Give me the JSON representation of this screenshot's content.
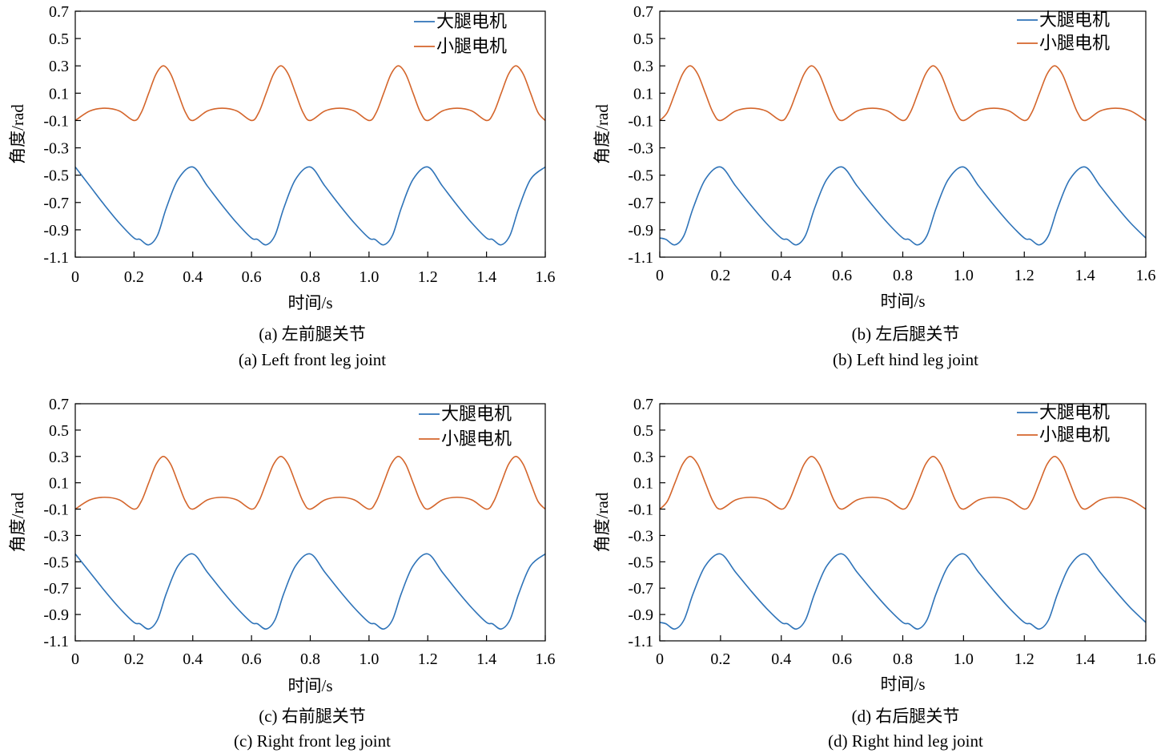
{
  "figure": {
    "colors": {
      "thigh": "#2e73b8",
      "shank": "#d4652b",
      "axis": "#000000"
    }
  },
  "chart_data": [
    {
      "type": "line",
      "caption_cn": "(a) 左前腿关节",
      "caption_en": "(a) Left front leg joint",
      "xlabel": "时间/s",
      "ylabel": "角度/rad",
      "xlim": [
        0,
        1.6
      ],
      "ylim": [
        -1.1,
        0.7
      ],
      "xticks": [
        0,
        0.2,
        0.4,
        0.6,
        0.8,
        1.0,
        1.2,
        1.4,
        1.6
      ],
      "xtick_labels": [
        "0",
        "0.2",
        "0.4",
        "0.6",
        "0.8",
        "1.0",
        "1.2",
        "1.4",
        "1.6"
      ],
      "yticks": [
        0.7,
        0.5,
        0.3,
        0.1,
        -0.1,
        -0.3,
        -0.5,
        -0.7,
        -0.9,
        -1.1
      ],
      "ytick_labels": [
        "0.7",
        "0.5",
        "0.3",
        "0.1",
        "-0.1",
        "-0.3",
        "-0.5",
        "-0.7",
        "-0.9",
        "-1.1"
      ],
      "legend_position": "top-right",
      "series": [
        {
          "name": "大腿电机",
          "color": "#2e73b8",
          "x": [
            0,
            0.05,
            0.1,
            0.15,
            0.2,
            0.22,
            0.25,
            0.28,
            0.31,
            0.35,
            0.4,
            0.45,
            0.5,
            0.55,
            0.6,
            0.62,
            0.65,
            0.68,
            0.71,
            0.75,
            0.8,
            0.85,
            0.9,
            0.95,
            1.0,
            1.02,
            1.05,
            1.08,
            1.11,
            1.15,
            1.2,
            1.25,
            1.3,
            1.35,
            1.4,
            1.42,
            1.45,
            1.48,
            1.51,
            1.55,
            1.6
          ],
          "y": [
            -0.44,
            -0.58,
            -0.72,
            -0.85,
            -0.96,
            -0.97,
            -1.01,
            -0.94,
            -0.74,
            -0.53,
            -0.44,
            -0.58,
            -0.72,
            -0.85,
            -0.96,
            -0.97,
            -1.01,
            -0.94,
            -0.74,
            -0.53,
            -0.44,
            -0.58,
            -0.72,
            -0.85,
            -0.96,
            -0.97,
            -1.01,
            -0.94,
            -0.74,
            -0.53,
            -0.44,
            -0.58,
            -0.72,
            -0.85,
            -0.96,
            -0.97,
            -1.01,
            -0.94,
            -0.74,
            -0.53,
            -0.44
          ]
        },
        {
          "name": "小腿电机",
          "color": "#d4652b",
          "x": [
            0,
            0.05,
            0.1,
            0.15,
            0.2,
            0.225,
            0.25,
            0.275,
            0.3,
            0.325,
            0.35,
            0.375,
            0.4,
            0.45,
            0.5,
            0.55,
            0.6,
            0.625,
            0.65,
            0.675,
            0.7,
            0.725,
            0.75,
            0.775,
            0.8,
            0.85,
            0.9,
            0.95,
            1.0,
            1.025,
            1.05,
            1.075,
            1.1,
            1.125,
            1.15,
            1.175,
            1.2,
            1.25,
            1.3,
            1.35,
            1.4,
            1.425,
            1.45,
            1.475,
            1.5,
            1.525,
            1.55,
            1.575,
            1.6
          ],
          "y": [
            -0.1,
            -0.03,
            -0.01,
            -0.03,
            -0.1,
            -0.04,
            0.1,
            0.24,
            0.3,
            0.24,
            0.1,
            -0.04,
            -0.1,
            -0.03,
            -0.01,
            -0.03,
            -0.1,
            -0.04,
            0.1,
            0.24,
            0.3,
            0.24,
            0.1,
            -0.04,
            -0.1,
            -0.03,
            -0.01,
            -0.03,
            -0.1,
            -0.04,
            0.1,
            0.24,
            0.3,
            0.24,
            0.1,
            -0.04,
            -0.1,
            -0.03,
            -0.01,
            -0.03,
            -0.1,
            -0.04,
            0.1,
            0.24,
            0.3,
            0.24,
            0.1,
            -0.04,
            -0.1
          ]
        }
      ]
    },
    {
      "type": "line",
      "caption_cn": "(b) 左后腿关节",
      "caption_en": "(b) Left hind leg joint",
      "xlabel": "时间/s",
      "ylabel": "角度/rad",
      "xlim": [
        0,
        1.6
      ],
      "ylim": [
        -1.1,
        0.7
      ],
      "xticks": [
        0,
        0.2,
        0.4,
        0.6,
        0.8,
        1.0,
        1.2,
        1.4,
        1.6
      ],
      "xtick_labels": [
        "0",
        "0.2",
        "0.4",
        "0.6",
        "0.8",
        "1.0",
        "1.2",
        "1.4",
        "1.6"
      ],
      "yticks": [
        0.7,
        0.5,
        0.3,
        0.1,
        -0.1,
        -0.3,
        -0.5,
        -0.7,
        -0.9,
        -1.1
      ],
      "ytick_labels": [
        "0.7",
        "0.5",
        "0.3",
        "0.1",
        "-0.1",
        "-0.3",
        "-0.5",
        "-0.7",
        "-0.9",
        "-1.1"
      ],
      "legend_position": "top-right",
      "series": [
        {
          "name": "大腿电机",
          "color": "#2e73b8",
          "x": [
            0,
            0.02,
            0.05,
            0.08,
            0.11,
            0.15,
            0.2,
            0.25,
            0.3,
            0.35,
            0.4,
            0.42,
            0.45,
            0.48,
            0.51,
            0.55,
            0.6,
            0.65,
            0.7,
            0.75,
            0.8,
            0.82,
            0.85,
            0.88,
            0.91,
            0.95,
            1.0,
            1.05,
            1.1,
            1.15,
            1.2,
            1.22,
            1.25,
            1.28,
            1.31,
            1.35,
            1.4,
            1.45,
            1.5,
            1.55,
            1.6
          ],
          "y": [
            -0.96,
            -0.97,
            -1.01,
            -0.94,
            -0.74,
            -0.53,
            -0.44,
            -0.58,
            -0.72,
            -0.85,
            -0.96,
            -0.97,
            -1.01,
            -0.94,
            -0.74,
            -0.53,
            -0.44,
            -0.58,
            -0.72,
            -0.85,
            -0.96,
            -0.97,
            -1.01,
            -0.94,
            -0.74,
            -0.53,
            -0.44,
            -0.58,
            -0.72,
            -0.85,
            -0.96,
            -0.97,
            -1.01,
            -0.94,
            -0.74,
            -0.53,
            -0.44,
            -0.58,
            -0.72,
            -0.85,
            -0.96
          ]
        },
        {
          "name": "小腿电机",
          "color": "#d4652b",
          "x": [
            0,
            0.025,
            0.05,
            0.075,
            0.1,
            0.125,
            0.15,
            0.175,
            0.2,
            0.25,
            0.3,
            0.35,
            0.4,
            0.425,
            0.45,
            0.475,
            0.5,
            0.525,
            0.55,
            0.575,
            0.6,
            0.65,
            0.7,
            0.75,
            0.8,
            0.825,
            0.85,
            0.875,
            0.9,
            0.925,
            0.95,
            0.975,
            1.0,
            1.05,
            1.1,
            1.15,
            1.2,
            1.225,
            1.25,
            1.275,
            1.3,
            1.325,
            1.35,
            1.375,
            1.4,
            1.45,
            1.5,
            1.55,
            1.6
          ],
          "y": [
            -0.1,
            -0.04,
            0.1,
            0.24,
            0.3,
            0.24,
            0.1,
            -0.04,
            -0.1,
            -0.03,
            -0.01,
            -0.03,
            -0.1,
            -0.04,
            0.1,
            0.24,
            0.3,
            0.24,
            0.1,
            -0.04,
            -0.1,
            -0.03,
            -0.01,
            -0.03,
            -0.1,
            -0.04,
            0.1,
            0.24,
            0.3,
            0.24,
            0.1,
            -0.04,
            -0.1,
            -0.03,
            -0.01,
            -0.03,
            -0.1,
            -0.04,
            0.1,
            0.24,
            0.3,
            0.24,
            0.1,
            -0.04,
            -0.1,
            -0.03,
            -0.01,
            -0.03,
            -0.1
          ]
        }
      ]
    },
    {
      "type": "line",
      "caption_cn": "(c) 右前腿关节",
      "caption_en": "(c) Right front leg joint",
      "xlabel": "时间/s",
      "ylabel": "角度/rad",
      "xlim": [
        0,
        1.6
      ],
      "ylim": [
        -1.1,
        0.7
      ],
      "xticks": [
        0,
        0.2,
        0.4,
        0.6,
        0.8,
        1.0,
        1.2,
        1.4,
        1.6
      ],
      "xtick_labels": [
        "0",
        "0.2",
        "0.4",
        "0.6",
        "0.8",
        "1.0",
        "1.2",
        "1.4",
        "1.6"
      ],
      "yticks": [
        0.7,
        0.5,
        0.3,
        0.1,
        -0.1,
        -0.3,
        -0.5,
        -0.7,
        -0.9,
        -1.1
      ],
      "ytick_labels": [
        "0.7",
        "0.5",
        "0.3",
        "0.1",
        "-0.1",
        "-0.3",
        "-0.5",
        "-0.7",
        "-0.9",
        "-1.1"
      ],
      "legend_position": "top-right",
      "series": [
        {
          "name": "大腿电机",
          "color": "#2e73b8",
          "x": [
            0,
            0.05,
            0.1,
            0.15,
            0.2,
            0.22,
            0.25,
            0.28,
            0.31,
            0.35,
            0.4,
            0.45,
            0.5,
            0.55,
            0.6,
            0.62,
            0.65,
            0.68,
            0.71,
            0.75,
            0.8,
            0.85,
            0.9,
            0.95,
            1.0,
            1.02,
            1.05,
            1.08,
            1.11,
            1.15,
            1.2,
            1.25,
            1.3,
            1.35,
            1.4,
            1.42,
            1.45,
            1.48,
            1.51,
            1.55,
            1.6
          ],
          "y": [
            -0.44,
            -0.58,
            -0.72,
            -0.85,
            -0.96,
            -0.97,
            -1.01,
            -0.94,
            -0.74,
            -0.53,
            -0.44,
            -0.58,
            -0.72,
            -0.85,
            -0.96,
            -0.97,
            -1.01,
            -0.94,
            -0.74,
            -0.53,
            -0.44,
            -0.58,
            -0.72,
            -0.85,
            -0.96,
            -0.97,
            -1.01,
            -0.94,
            -0.74,
            -0.53,
            -0.44,
            -0.58,
            -0.72,
            -0.85,
            -0.96,
            -0.97,
            -1.01,
            -0.94,
            -0.74,
            -0.53,
            -0.44
          ]
        },
        {
          "name": "小腿电机",
          "color": "#d4652b",
          "x": [
            0,
            0.05,
            0.1,
            0.15,
            0.2,
            0.225,
            0.25,
            0.275,
            0.3,
            0.325,
            0.35,
            0.375,
            0.4,
            0.45,
            0.5,
            0.55,
            0.6,
            0.625,
            0.65,
            0.675,
            0.7,
            0.725,
            0.75,
            0.775,
            0.8,
            0.85,
            0.9,
            0.95,
            1.0,
            1.025,
            1.05,
            1.075,
            1.1,
            1.125,
            1.15,
            1.175,
            1.2,
            1.25,
            1.3,
            1.35,
            1.4,
            1.425,
            1.45,
            1.475,
            1.5,
            1.525,
            1.55,
            1.575,
            1.6
          ],
          "y": [
            -0.1,
            -0.03,
            -0.01,
            -0.03,
            -0.1,
            -0.04,
            0.1,
            0.24,
            0.3,
            0.24,
            0.1,
            -0.04,
            -0.1,
            -0.03,
            -0.01,
            -0.03,
            -0.1,
            -0.04,
            0.1,
            0.24,
            0.3,
            0.24,
            0.1,
            -0.04,
            -0.1,
            -0.03,
            -0.01,
            -0.03,
            -0.1,
            -0.04,
            0.1,
            0.24,
            0.3,
            0.24,
            0.1,
            -0.04,
            -0.1,
            -0.03,
            -0.01,
            -0.03,
            -0.1,
            -0.04,
            0.1,
            0.24,
            0.3,
            0.24,
            0.1,
            -0.04,
            -0.1
          ]
        }
      ]
    },
    {
      "type": "line",
      "caption_cn": "(d) 右后腿关节",
      "caption_en": "(d) Right hind leg joint",
      "xlabel": "时间/s",
      "ylabel": "角度/rad",
      "xlim": [
        0,
        1.6
      ],
      "ylim": [
        -1.1,
        0.7
      ],
      "xticks": [
        0,
        0.2,
        0.4,
        0.6,
        0.8,
        1.0,
        1.2,
        1.4,
        1.6
      ],
      "xtick_labels": [
        "0",
        "0.2",
        "0.4",
        "0.6",
        "0.8",
        "1.0",
        "1.2",
        "1.4",
        "1.6"
      ],
      "yticks": [
        0.7,
        0.5,
        0.3,
        0.1,
        -0.1,
        -0.3,
        -0.5,
        -0.7,
        -0.9,
        -1.1
      ],
      "ytick_labels": [
        "0.7",
        "0.5",
        "0.3",
        "0.1",
        "-0.1",
        "-0.3",
        "-0.5",
        "-0.7",
        "-0.9",
        "-1.1"
      ],
      "legend_position": "top-right",
      "series": [
        {
          "name": "大腿电机",
          "color": "#2e73b8",
          "x": [
            0,
            0.02,
            0.05,
            0.08,
            0.11,
            0.15,
            0.2,
            0.25,
            0.3,
            0.35,
            0.4,
            0.42,
            0.45,
            0.48,
            0.51,
            0.55,
            0.6,
            0.65,
            0.7,
            0.75,
            0.8,
            0.82,
            0.85,
            0.88,
            0.91,
            0.95,
            1.0,
            1.05,
            1.1,
            1.15,
            1.2,
            1.22,
            1.25,
            1.28,
            1.31,
            1.35,
            1.4,
            1.45,
            1.5,
            1.55,
            1.6
          ],
          "y": [
            -0.96,
            -0.97,
            -1.01,
            -0.94,
            -0.74,
            -0.53,
            -0.44,
            -0.58,
            -0.72,
            -0.85,
            -0.96,
            -0.97,
            -1.01,
            -0.94,
            -0.74,
            -0.53,
            -0.44,
            -0.58,
            -0.72,
            -0.85,
            -0.96,
            -0.97,
            -1.01,
            -0.94,
            -0.74,
            -0.53,
            -0.44,
            -0.58,
            -0.72,
            -0.85,
            -0.96,
            -0.97,
            -1.01,
            -0.94,
            -0.74,
            -0.53,
            -0.44,
            -0.58,
            -0.72,
            -0.85,
            -0.96
          ]
        },
        {
          "name": "小腿电机",
          "color": "#d4652b",
          "x": [
            0,
            0.025,
            0.05,
            0.075,
            0.1,
            0.125,
            0.15,
            0.175,
            0.2,
            0.25,
            0.3,
            0.35,
            0.4,
            0.425,
            0.45,
            0.475,
            0.5,
            0.525,
            0.55,
            0.575,
            0.6,
            0.65,
            0.7,
            0.75,
            0.8,
            0.825,
            0.85,
            0.875,
            0.9,
            0.925,
            0.95,
            0.975,
            1.0,
            1.05,
            1.1,
            1.15,
            1.2,
            1.225,
            1.25,
            1.275,
            1.3,
            1.325,
            1.35,
            1.375,
            1.4,
            1.45,
            1.5,
            1.55,
            1.6
          ],
          "y": [
            -0.1,
            -0.04,
            0.1,
            0.24,
            0.3,
            0.24,
            0.1,
            -0.04,
            -0.1,
            -0.03,
            -0.01,
            -0.03,
            -0.1,
            -0.04,
            0.1,
            0.24,
            0.3,
            0.24,
            0.1,
            -0.04,
            -0.1,
            -0.03,
            -0.01,
            -0.03,
            -0.1,
            -0.04,
            0.1,
            0.24,
            0.3,
            0.24,
            0.1,
            -0.04,
            -0.1,
            -0.03,
            -0.01,
            -0.03,
            -0.1,
            -0.04,
            0.1,
            0.24,
            0.3,
            0.24,
            0.1,
            -0.04,
            -0.1,
            -0.03,
            -0.01,
            -0.03,
            -0.1
          ]
        }
      ]
    }
  ]
}
